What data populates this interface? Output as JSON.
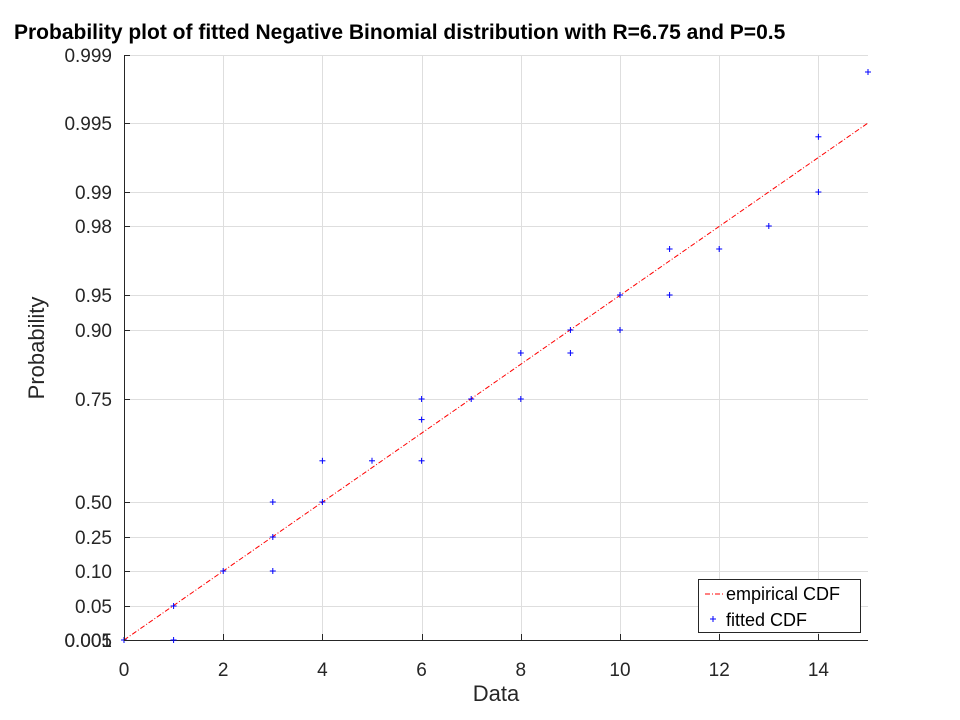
{
  "chart_data": {
    "type": "scatter",
    "title": "Probability plot of fitted Negative Binomial distribution with R=6.75 and P=0.5",
    "xlabel": "Data",
    "ylabel": "Probability",
    "xlim": [
      0,
      15
    ],
    "x_ticks": [
      0,
      2,
      4,
      6,
      8,
      10,
      12,
      14
    ],
    "y_ticks": [
      "0.001",
      "0.005",
      "0.05",
      "0.10",
      "0.25",
      "0.50",
      "0.75",
      "0.90",
      "0.95",
      "0.98",
      "0.99",
      "0.995",
      "0.999"
    ],
    "grid": true,
    "legend_position": "bottom-right",
    "series": [
      {
        "name": "empirical CDF",
        "style": "dash-dot line",
        "color": "#ff0000",
        "points": [
          {
            "x": 0,
            "y": 0.001
          },
          {
            "x": 15,
            "y": 0.995
          }
        ]
      },
      {
        "name": "fitted CDF",
        "style": "plus markers",
        "color": "#0000ff",
        "points": [
          {
            "x": 0,
            "y": 0.001
          },
          {
            "x": 1,
            "y": 0.001
          },
          {
            "x": 1,
            "y": 0.05
          },
          {
            "x": 2,
            "y": 0.1
          },
          {
            "x": 3,
            "y": 0.1
          },
          {
            "x": 3,
            "y": 0.25
          },
          {
            "x": 3,
            "y": 0.5
          },
          {
            "x": 4,
            "y": 0.5
          },
          {
            "x": 4,
            "y": 0.6
          },
          {
            "x": 5,
            "y": 0.6
          },
          {
            "x": 6,
            "y": 0.6
          },
          {
            "x": 6,
            "y": 0.7
          },
          {
            "x": 6,
            "y": 0.75
          },
          {
            "x": 7,
            "y": 0.75
          },
          {
            "x": 8,
            "y": 0.75
          },
          {
            "x": 8,
            "y": 0.85
          },
          {
            "x": 9,
            "y": 0.85
          },
          {
            "x": 9,
            "y": 0.9
          },
          {
            "x": 10,
            "y": 0.9
          },
          {
            "x": 10,
            "y": 0.95
          },
          {
            "x": 11,
            "y": 0.95
          },
          {
            "x": 11,
            "y": 0.97
          },
          {
            "x": 12,
            "y": 0.97
          },
          {
            "x": 13,
            "y": 0.98
          },
          {
            "x": 14,
            "y": 0.99
          },
          {
            "x": 14,
            "y": 0.994
          },
          {
            "x": 15,
            "y": 0.998
          }
        ]
      }
    ]
  }
}
